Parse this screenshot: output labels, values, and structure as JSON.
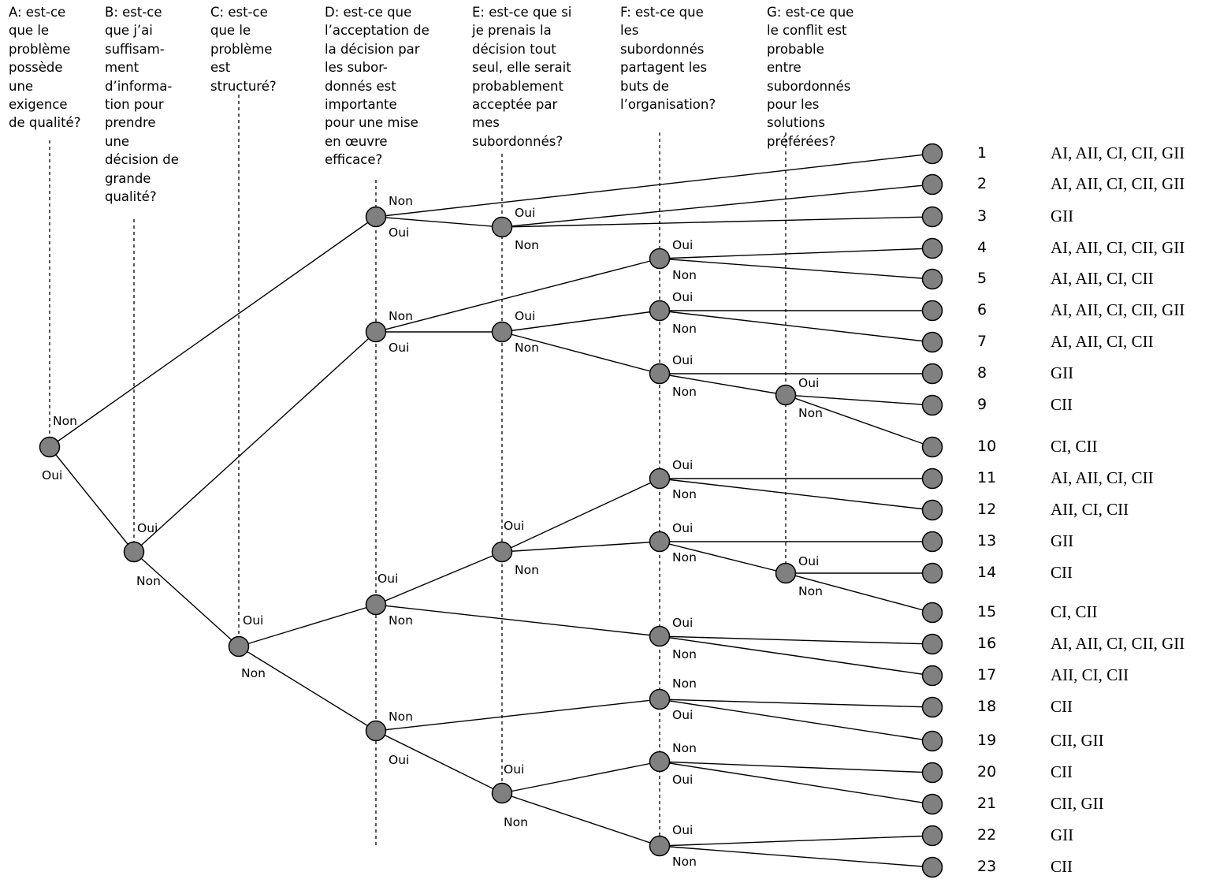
{
  "questions": [
    {
      "id": "A",
      "lines": [
        "A: est-ce",
        "que le",
        "problème",
        "possède",
        "une",
        "exigence",
        "de qualité?"
      ]
    },
    {
      "id": "B",
      "lines": [
        "B: est-ce",
        "que j’ai",
        "suffisam-",
        "ment",
        "d’informa-",
        "tion pour",
        "prendre",
        "une",
        "décision de",
        "grande",
        "qualité?"
      ]
    },
    {
      "id": "C",
      "lines": [
        "C: est-ce",
        "que le",
        "problème",
        "est",
        "structuré?"
      ]
    },
    {
      "id": "D",
      "lines": [
        "D: est-ce que",
        "l’acceptation de",
        "la décision par",
        "les subor-",
        "donnés est",
        "importante",
        "pour une mise",
        "en œuvre",
        "efficace?"
      ]
    },
    {
      "id": "E",
      "lines": [
        "E: est-ce que si",
        "je prenais la",
        "décision tout",
        "seul, elle serait",
        "probablement",
        "acceptée par",
        "mes",
        "subordonnés?"
      ]
    },
    {
      "id": "F",
      "lines": [
        "F: est-ce que",
        "les",
        "subordonnés",
        "partagent les",
        "buts de",
        "l’organisation?"
      ]
    },
    {
      "id": "G",
      "lines": [
        "G: est-ce que",
        "le conflit est",
        "probable",
        "entre",
        "subordonnés",
        "pour les",
        "solutions",
        "préférées?"
      ]
    }
  ],
  "branch_labels": {
    "yes": "Oui",
    "no": "Non"
  },
  "outcomes": [
    {
      "n": "1",
      "styles": "AI, AII, CI, CII, GII"
    },
    {
      "n": "2",
      "styles": "AI, AII, CI, CII, GII"
    },
    {
      "n": "3",
      "styles": "GII"
    },
    {
      "n": "4",
      "styles": "AI, AII, CI, CII, GII"
    },
    {
      "n": "5",
      "styles": "AI, AII, CI, CII"
    },
    {
      "n": "6",
      "styles": "AI, AII, CI, CII, GII"
    },
    {
      "n": "7",
      "styles": "AI, AII, CI, CII"
    },
    {
      "n": "8",
      "styles": "GII"
    },
    {
      "n": "9",
      "styles": "CII"
    },
    {
      "n": "10",
      "styles": "CI, CII"
    },
    {
      "n": "11",
      "styles": "AI, AII, CI, CII"
    },
    {
      "n": "12",
      "styles": "AII, CI, CII"
    },
    {
      "n": "13",
      "styles": "GII"
    },
    {
      "n": "14",
      "styles": "CII"
    },
    {
      "n": "15",
      "styles": "CI, CII"
    },
    {
      "n": "16",
      "styles": "AI, AII, CI, CII, GII"
    },
    {
      "n": "17",
      "styles": "AII, CI, CII"
    },
    {
      "n": "18",
      "styles": "CII"
    },
    {
      "n": "19",
      "styles": "CII, GII"
    },
    {
      "n": "20",
      "styles": "CII"
    },
    {
      "n": "21",
      "styles": "CII, GII"
    },
    {
      "n": "22",
      "styles": "GII"
    },
    {
      "n": "23",
      "styles": "CII"
    }
  ],
  "colors": {
    "node_fill": "#808080",
    "line": "#000000"
  }
}
